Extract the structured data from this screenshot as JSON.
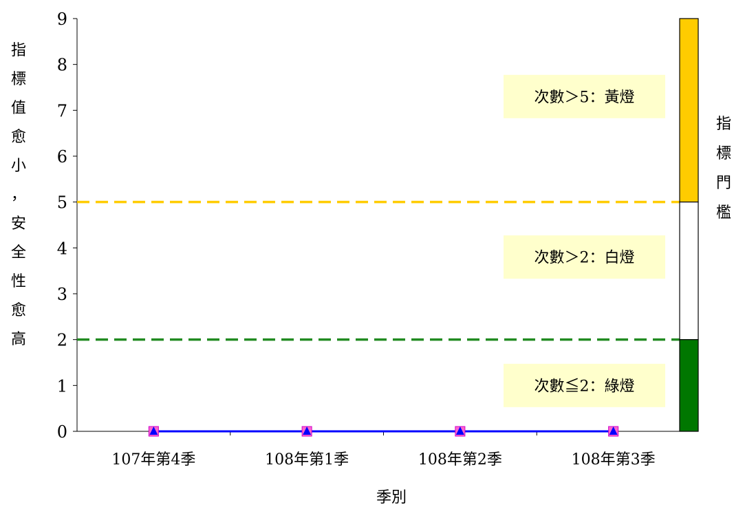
{
  "chart_data": {
    "type": "line",
    "categories": [
      "107年第4季",
      "108年第1季",
      "108年第2季",
      "108年第3季"
    ],
    "series": [
      {
        "values": [
          0,
          0,
          0,
          0
        ],
        "color": "#0000ff",
        "marker": "triangle"
      }
    ],
    "xlabel": "季別",
    "ylabel": "指標值愈小，安全性愈高",
    "ylim": [
      0,
      9
    ],
    "yticks": [
      "0",
      "1",
      "2",
      "3",
      "4",
      "5",
      "6",
      "7",
      "8",
      "9"
    ],
    "grid": false,
    "threshold_lines": [
      {
        "value": 5,
        "color": "#ffcc00",
        "style": "dashed"
      },
      {
        "value": 2,
        "color": "#228b22",
        "style": "dashed"
      }
    ],
    "threshold_bar": {
      "label": "指標門檻",
      "segments": [
        {
          "from": 5,
          "to": 9,
          "color": "#ffcc00"
        },
        {
          "from": 2,
          "to": 5,
          "color": "#ffffff"
        },
        {
          "from": 0,
          "to": 2,
          "color": "#007700"
        }
      ]
    },
    "annotations": [
      {
        "text": "次數＞5：黃燈",
        "at": 7.3,
        "background": "#ffffcc"
      },
      {
        "text": "次數＞2：白燈",
        "at": 3.8,
        "background": "#ffffcc"
      },
      {
        "text": "次數≦2：綠燈",
        "at": 1.0,
        "background": "#ffffcc"
      }
    ]
  }
}
